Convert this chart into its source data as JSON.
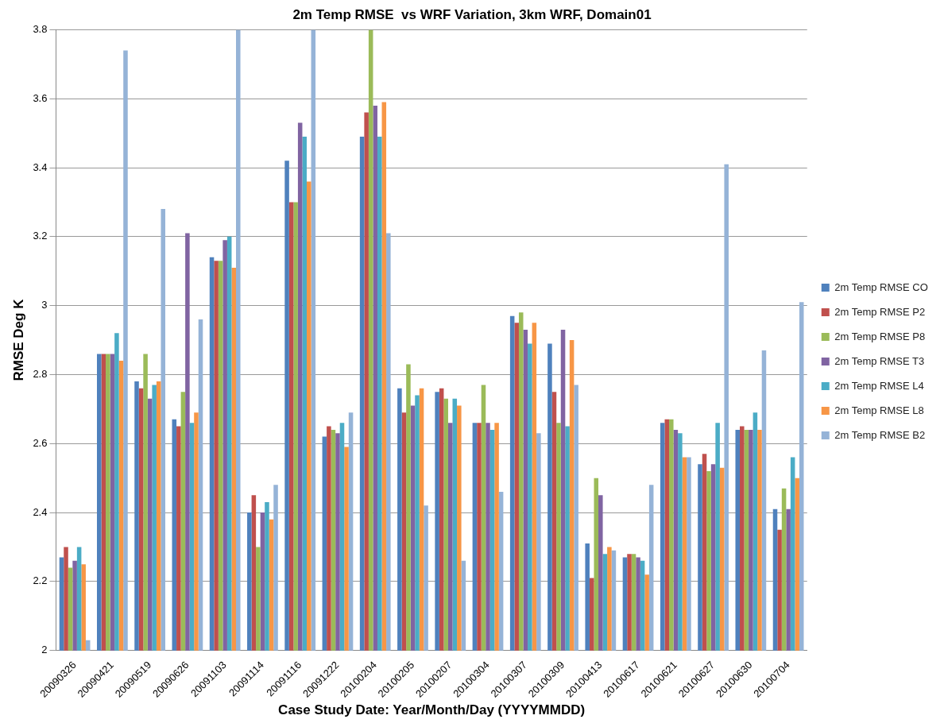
{
  "chart_data": {
    "type": "bar",
    "title": "2m Temp RMSE  vs WRF Variation, 3km WRF, Domain01",
    "xlabel": "Case Study Date: Year/Month/Day (YYYYMMDD)",
    "ylabel": "RMSE Deg K",
    "categories": [
      "20090326",
      "20090421",
      "20090519",
      "20090626",
      "20091103",
      "20091114",
      "20091116",
      "20091222",
      "20100204",
      "20100205",
      "20100207",
      "20100304",
      "20100307",
      "20100309",
      "20100413",
      "20100617",
      "20100621",
      "20100627",
      "20100630",
      "20100704"
    ],
    "series": [
      {
        "name": "2m Temp RMSE CO",
        "color": "#4f81bd",
        "values": [
          2.27,
          2.86,
          2.78,
          2.67,
          3.14,
          2.4,
          3.42,
          2.62,
          3.49,
          2.76,
          2.75,
          2.66,
          2.97,
          2.89,
          2.31,
          2.27,
          2.66,
          2.54,
          2.64,
          2.41
        ]
      },
      {
        "name": "2m Temp RMSE P2",
        "color": "#c0504d",
        "values": [
          2.3,
          2.86,
          2.76,
          2.65,
          3.13,
          2.45,
          3.3,
          2.65,
          3.56,
          2.69,
          2.76,
          2.66,
          2.95,
          2.75,
          2.21,
          2.28,
          2.67,
          2.57,
          2.65,
          2.35
        ]
      },
      {
        "name": "2m Temp RMSE P8",
        "color": "#9bbb59",
        "values": [
          2.24,
          2.86,
          2.86,
          2.75,
          3.13,
          2.3,
          3.3,
          2.64,
          3.8,
          2.83,
          2.73,
          2.77,
          2.98,
          2.66,
          2.5,
          2.28,
          2.67,
          2.52,
          2.64,
          2.47
        ]
      },
      {
        "name": "2m Temp RMSE T3",
        "color": "#8064a2",
        "values": [
          2.26,
          2.86,
          2.73,
          3.21,
          3.19,
          2.4,
          3.53,
          2.63,
          3.58,
          2.71,
          2.66,
          2.66,
          2.93,
          2.93,
          2.45,
          2.27,
          2.64,
          2.54,
          2.64,
          2.41
        ]
      },
      {
        "name": "2m Temp RMSE L4",
        "color": "#4bacc6",
        "values": [
          2.3,
          2.92,
          2.77,
          2.66,
          3.2,
          2.43,
          3.49,
          2.66,
          3.49,
          2.74,
          2.73,
          2.64,
          2.89,
          2.65,
          2.28,
          2.26,
          2.63,
          2.66,
          2.69,
          2.56
        ]
      },
      {
        "name": "2m Temp RMSE L8",
        "color": "#f79646",
        "values": [
          2.25,
          2.84,
          2.78,
          2.69,
          3.11,
          2.38,
          3.36,
          2.59,
          3.59,
          2.76,
          2.71,
          2.66,
          2.95,
          2.9,
          2.3,
          2.22,
          2.56,
          2.53,
          2.64,
          2.5
        ]
      },
      {
        "name": "2m Temp RMSE B2",
        "color": "#95b3d7",
        "values": [
          2.03,
          3.74,
          3.28,
          2.96,
          3.8,
          2.48,
          3.8,
          2.69,
          3.21,
          2.42,
          2.26,
          2.46,
          2.63,
          2.77,
          2.29,
          2.48,
          2.56,
          3.41,
          2.87,
          3.01
        ]
      }
    ],
    "ylim": [
      2,
      3.8
    ],
    "yticks": [
      2,
      2.2,
      2.4,
      2.6,
      2.8,
      3,
      3.2,
      3.4,
      3.6,
      3.8
    ],
    "grid": "y",
    "legend": "right"
  }
}
